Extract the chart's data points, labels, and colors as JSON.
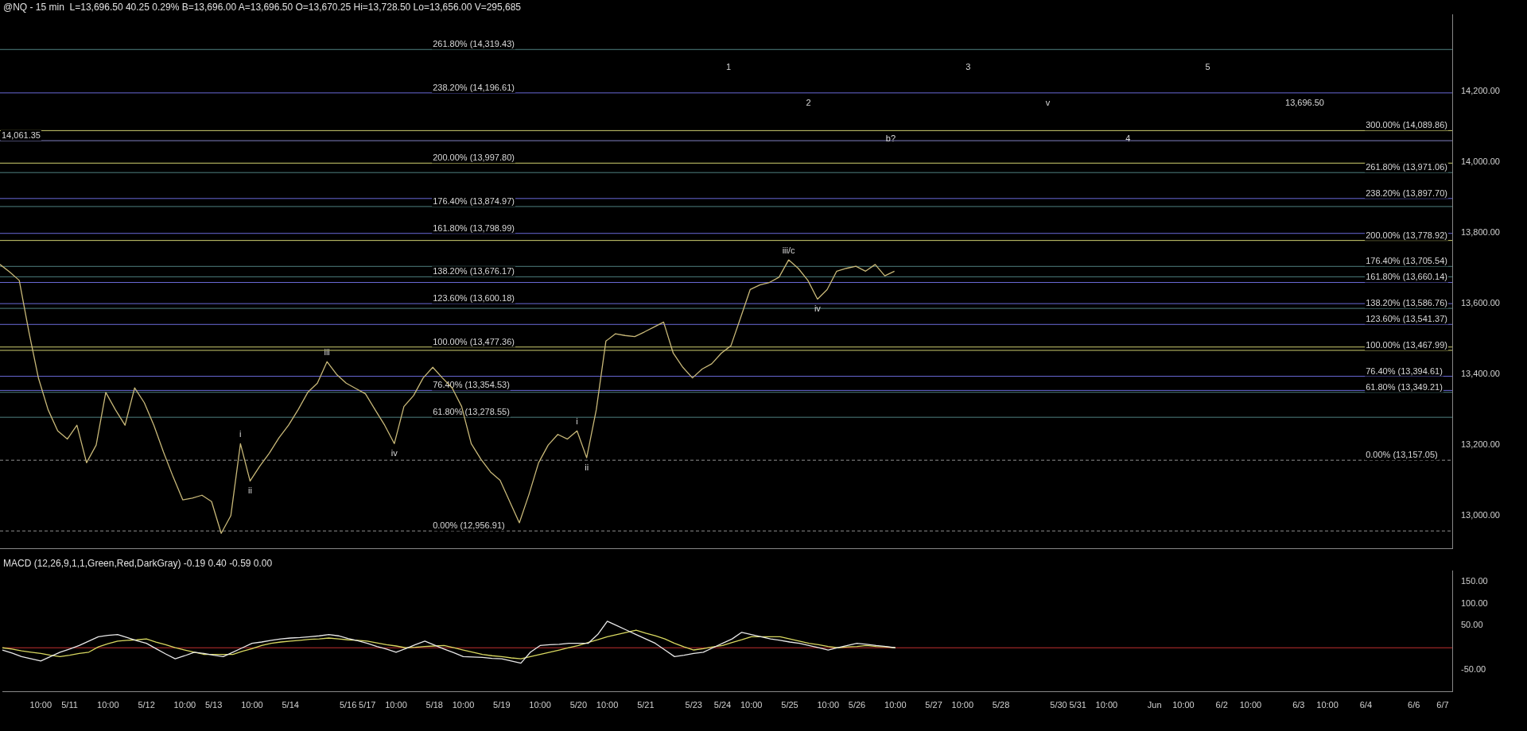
{
  "chart_data": [
    {
      "type": "line",
      "title": "@NQ - 15 min  L=13,696.50 40.25 0.29% B=13,696.00 A=13,696.50 O=13,670.25 Hi=13,728.50 Lo=13,656.00 V=295,685",
      "categories": [
        null,
        null,
        null,
        null,
        "10:00",
        null,
        null,
        "5/11",
        null,
        null,
        null,
        "10:00",
        null,
        null,
        null,
        "5/12",
        null,
        null,
        null,
        "10:00",
        null,
        null,
        "5/13",
        null,
        null,
        null,
        "10:00",
        null,
        null,
        null,
        "5/14",
        null,
        null,
        null,
        null,
        null,
        "5/16",
        null,
        "5/17",
        null,
        null,
        "10:00",
        null,
        null,
        null,
        "5/18",
        null,
        null,
        "10:00",
        null,
        null,
        null,
        "5/19",
        null,
        null,
        null,
        "10:00",
        null,
        null,
        null,
        "5/20",
        null,
        null,
        "10:00",
        null,
        null,
        null,
        "5/21",
        null,
        null,
        null,
        null,
        "5/23",
        null,
        null,
        "5/24",
        null,
        null,
        "10:00",
        null,
        null,
        null,
        "5/25",
        null,
        null,
        null,
        "10:00",
        null,
        null,
        "5/26",
        null,
        null,
        null,
        "10:00",
        null,
        null,
        null,
        "5/27",
        null,
        null,
        "10:00",
        null,
        null,
        null,
        "5/28",
        null,
        null,
        null,
        null,
        null,
        "5/30",
        null,
        "5/31",
        null,
        null,
        "10:00",
        null,
        null,
        null,
        null,
        "Jun",
        null,
        null,
        "10:00",
        null,
        null,
        null,
        "6/2",
        null,
        null,
        "10:00",
        null,
        null,
        null,
        null,
        "6/3",
        null,
        null,
        "10:00",
        null,
        null,
        null,
        "6/4",
        null,
        null,
        null,
        null,
        "6/6",
        null,
        null,
        "6/7",
        null
      ],
      "series": [
        {
          "color": "#c8b878",
          "values": [
            13711,
            13690,
            13666,
            13521,
            13389,
            13300,
            13240,
            13217,
            13256,
            13150,
            13200,
            13349,
            13300,
            13256,
            13362,
            13320,
            13256,
            13180,
            13110,
            13045,
            13050,
            13058,
            13040,
            12950,
            13000,
            13204,
            13098,
            13140,
            13177,
            13220,
            13256,
            13300,
            13349,
            13375,
            13436,
            13400,
            13375,
            13360,
            13345,
            13300,
            13256,
            13204,
            13309,
            13340,
            13390,
            13420,
            13390,
            13362,
            13309,
            13204,
            13160,
            13124,
            13100,
            13040,
            12980,
            13060,
            13150,
            13200,
            13230,
            13217,
            13240,
            13164,
            13300,
            13494,
            13515,
            13510,
            13507,
            13520,
            13534,
            13548,
            13460,
            13420,
            13390,
            13415,
            13430,
            13460,
            13481,
            13560,
            13640,
            13653,
            13660,
            13675,
            13724,
            13700,
            13666,
            13613,
            13640,
            13692,
            13700,
            13706,
            13692,
            13711,
            13679,
            13692,
            null,
            null,
            null,
            null,
            null,
            null,
            null,
            null,
            null,
            null,
            null,
            null,
            null,
            null,
            null,
            null,
            null,
            null,
            null,
            null,
            null,
            null,
            null,
            null,
            null,
            null,
            null,
            null,
            null,
            null,
            null,
            null,
            null,
            null,
            null,
            null,
            null,
            null,
            null,
            null,
            null,
            null,
            null,
            null,
            null,
            null,
            null,
            null,
            null,
            null,
            null,
            null,
            null,
            null,
            null,
            null,
            null,
            null
          ],
          "value_labels": [
            null,
            null,
            null,
            null,
            null,
            null,
            null,
            null,
            null,
            null,
            null,
            null,
            null,
            null,
            null,
            null,
            null,
            null,
            null,
            null,
            null,
            null,
            null,
            null,
            null,
            "i",
            "ii",
            null,
            null,
            null,
            null,
            null,
            null,
            null,
            "iii",
            null,
            null,
            null,
            null,
            null,
            null,
            "iv",
            null,
            null,
            null,
            null,
            null,
            null,
            null,
            null,
            null,
            null,
            null,
            null,
            null,
            null,
            null,
            null,
            null,
            null,
            "i",
            "ii",
            null,
            null,
            null,
            null,
            null,
            null,
            null,
            null,
            null,
            null,
            null,
            null,
            null,
            null,
            null,
            null,
            null,
            null,
            null,
            null,
            "iii/c",
            null,
            null,
            "iv",
            null,
            null,
            null,
            null,
            null,
            null,
            null,
            null,
            null,
            null,
            null,
            null,
            null,
            null,
            null,
            null,
            null,
            null,
            null,
            null,
            null,
            null,
            null,
            null,
            null,
            null,
            null,
            null,
            null,
            null,
            null,
            null,
            null,
            null,
            null,
            null,
            null,
            null,
            null,
            null,
            null,
            null,
            null,
            null,
            null,
            null,
            null,
            null,
            null,
            null,
            null,
            null,
            null,
            null,
            null,
            null,
            null,
            null,
            null,
            null,
            null,
            null,
            null,
            null,
            null,
            null
          ]
        }
      ],
      "ylim": [
        12907,
        14419
      ],
      "yticks": [
        {
          "value": 13000,
          "label": "13,000.00"
        },
        {
          "value": 13200,
          "label": "13,200.00"
        },
        {
          "value": 13400,
          "label": "13,400.00"
        },
        {
          "value": 13600,
          "label": "13,600.00"
        },
        {
          "value": 13800,
          "label": "13,800.00"
        },
        {
          "value": 14000,
          "label": "14,000.00"
        },
        {
          "value": 14200,
          "label": "14,200.00"
        }
      ],
      "tick_labels": "y",
      "grid": false,
      "legend": false,
      "ref_lines": [
        {
          "axis": "y",
          "value": 14319.43,
          "color": "#4f8080"
        },
        {
          "axis": "y",
          "value": 14196.61,
          "color": "#6a6ad8"
        },
        {
          "axis": "y",
          "value": 14061.35,
          "color": "#8080c0"
        },
        {
          "axis": "y",
          "value": 13997.8,
          "color": "#d0d070"
        },
        {
          "axis": "y",
          "value": 13874.97,
          "color": "#4f8080"
        },
        {
          "axis": "y",
          "value": 13798.99,
          "color": "#6a6ad8"
        },
        {
          "axis": "y",
          "value": 13676.17,
          "color": "#4f8080"
        },
        {
          "axis": "y",
          "value": 13600.18,
          "color": "#6a6ad8"
        },
        {
          "axis": "y",
          "value": 13477.36,
          "color": "#d0d070"
        },
        {
          "axis": "y",
          "value": 13354.53,
          "color": "#6a6ad8"
        },
        {
          "axis": "y",
          "value": 13278.55,
          "color": "#4f8080"
        },
        {
          "axis": "y",
          "value": 12956.91,
          "color": "#909090",
          "line_style": "dashed"
        },
        {
          "axis": "y",
          "value": 14089.86,
          "color": "#d0d070"
        },
        {
          "axis": "y",
          "value": 13971.06,
          "color": "#4f8080"
        },
        {
          "axis": "y",
          "value": 13897.7,
          "color": "#6a6ad8"
        },
        {
          "axis": "y",
          "value": 13778.92,
          "color": "#d0d070"
        },
        {
          "axis": "y",
          "value": 13705.54,
          "color": "#4f8080"
        },
        {
          "axis": "y",
          "value": 13660.14,
          "color": "#6a6ad8"
        },
        {
          "axis": "y",
          "value": 13586.76,
          "color": "#4f8080"
        },
        {
          "axis": "y",
          "value": 13541.37,
          "color": "#6a6ad8"
        },
        {
          "axis": "y",
          "value": 13467.99,
          "color": "#d0d070"
        },
        {
          "axis": "y",
          "value": 13394.61,
          "color": "#6a6ad8"
        },
        {
          "axis": "y",
          "value": 13349.21,
          "color": "#4f8080"
        },
        {
          "axis": "y",
          "value": 13157.05,
          "color": "#909090",
          "line_style": "dashed"
        }
      ],
      "annotations": [
        {
          "text": "261.80% (14,319.43)",
          "x": "5/18",
          "y": 14319.43
        },
        {
          "text": "238.20% (14,196.61)",
          "x": "5/18",
          "y": 14196.61
        },
        {
          "text": "14,061.35",
          "y": 14061.35
        },
        {
          "text": "200.00% (13,997.80)",
          "x": "5/18",
          "y": 13997.8
        },
        {
          "text": "176.40% (13,874.97)",
          "x": "5/18",
          "y": 13874.97
        },
        {
          "text": "161.80% (13,798.99)",
          "x": "5/18",
          "y": 13798.99
        },
        {
          "text": "138.20% (13,676.17)",
          "x": "5/18",
          "y": 13676.17
        },
        {
          "text": "123.60% (13,600.18)",
          "x": "5/18",
          "y": 13600.18
        },
        {
          "text": "100.00% (13,477.36)",
          "x": "5/18",
          "y": 13477.36
        },
        {
          "text": "76.40% (13,354.53)",
          "x": "5/18",
          "y": 13354.53
        },
        {
          "text": "61.80% (13,278.55)",
          "x": "5/18",
          "y": 13278.55
        },
        {
          "text": "0.00% (12,956.91)",
          "x": "5/18",
          "y": 12956.91
        },
        {
          "text": "300.00% (14,089.86)",
          "x": "6/4",
          "y": 14089.86
        },
        {
          "text": "261.80% (13,971.06)",
          "x": "6/4",
          "y": 13971.06
        },
        {
          "text": "238.20% (13,897.70)",
          "x": "6/4",
          "y": 13897.7
        },
        {
          "text": "200.00% (13,778.92)",
          "x": "6/4",
          "y": 13778.92
        },
        {
          "text": "176.40% (13,705.54)",
          "x": "6/4",
          "y": 13705.54
        },
        {
          "text": "161.80% (13,660.14)",
          "x": "6/4",
          "y": 13660.14
        },
        {
          "text": "138.20% (13,586.76)",
          "x": "6/4",
          "y": 13586.76
        },
        {
          "text": "123.60% (13,541.37)",
          "x": "6/4",
          "y": 13541.37
        },
        {
          "text": "100.00% (13,467.99)",
          "x": "6/4",
          "y": 13467.99
        },
        {
          "text": "76.40% (13,394.61)",
          "x": "6/4",
          "y": 13394.61
        },
        {
          "text": "61.80% (13,349.21)",
          "x": "6/4",
          "y": 13349.21
        },
        {
          "text": "0.00% (13,157.05)",
          "x": "6/4",
          "y": 13157.05
        },
        "1",
        "2",
        "b?",
        "3",
        "v",
        "4",
        "5",
        "13,696.50"
      ]
    },
    {
      "type": "line",
      "title": "MACD (12,26,9,1,1,Green,Red,DarkGray) -0.19 0.40 -0.59 0.00",
      "categories": [
        null,
        null,
        null,
        null,
        "10:00",
        null,
        null,
        "5/11",
        null,
        null,
        null,
        "10:00",
        null,
        null,
        null,
        "5/12",
        null,
        null,
        null,
        "10:00",
        null,
        null,
        "5/13",
        null,
        null,
        null,
        "10:00",
        null,
        null,
        null,
        "5/14",
        null,
        null,
        null,
        null,
        null,
        "5/16",
        null,
        "5/17",
        null,
        null,
        "10:00",
        null,
        null,
        null,
        "5/18",
        null,
        null,
        "10:00",
        null,
        null,
        null,
        "5/19",
        null,
        null,
        null,
        "10:00",
        null,
        null,
        null,
        "5/20",
        null,
        null,
        "10:00",
        null,
        null,
        null,
        "5/21",
        null,
        null,
        null,
        null,
        "5/23",
        null,
        null,
        "5/24",
        null,
        null,
        "10:00",
        null,
        null,
        null,
        "5/25",
        null,
        null,
        null,
        "10:00",
        null,
        null,
        "5/26",
        null,
        null,
        null,
        "10:00",
        null,
        null,
        null,
        "5/27",
        null,
        null,
        "10:00",
        null,
        null,
        null,
        "5/28",
        null,
        null,
        null,
        null,
        null,
        "5/30",
        null,
        "5/31",
        null,
        null,
        "10:00",
        null,
        null,
        null,
        null,
        "Jun",
        null,
        null,
        "10:00",
        null,
        null,
        null,
        "6/2",
        null,
        null,
        "10:00",
        null,
        null,
        null,
        null,
        "6/3",
        null,
        null,
        "10:00",
        null,
        null,
        null,
        "6/4",
        null,
        null,
        null,
        null,
        "6/6",
        null,
        null,
        "6/7",
        null
      ],
      "series": [
        {
          "color": "#e8e8e8",
          "values": [
            -5,
            -12,
            -20,
            -25,
            -30,
            -20,
            -10,
            -3,
            5,
            15,
            25,
            28,
            30,
            23,
            16,
            10,
            -2,
            -14,
            -25,
            -18,
            -10,
            -13,
            -17,
            -20,
            -10,
            0,
            10,
            13,
            17,
            20,
            22,
            23,
            25,
            27,
            30,
            27,
            21,
            16,
            10,
            3,
            -3,
            -10,
            -2,
            7,
            15,
            6,
            -3,
            -11,
            -20,
            -21,
            -22,
            -24,
            -25,
            -30,
            -35,
            -10,
            5,
            7,
            8,
            10,
            10,
            10,
            30,
            60,
            50,
            40,
            30,
            20,
            10,
            -5,
            -20,
            -17,
            -13,
            -10,
            0,
            10,
            20,
            35,
            30,
            25,
            20,
            17,
            13,
            10,
            5,
            0,
            -5,
            0,
            5,
            10,
            8,
            5,
            3,
            0,
            null,
            null,
            null,
            null,
            null,
            null,
            null,
            null,
            null,
            null,
            null,
            null,
            null,
            null,
            null,
            null,
            null,
            null,
            null,
            null,
            null,
            null,
            null,
            null,
            null,
            null,
            null,
            null,
            null,
            null,
            null,
            null,
            null,
            null,
            null,
            null,
            null,
            null,
            null,
            null,
            null,
            null,
            null,
            null,
            null,
            null,
            null,
            null,
            null,
            null,
            null,
            null,
            null,
            null,
            null,
            null,
            null,
            null
          ]
        },
        {
          "color": "#d8d860",
          "values": [
            0,
            -3,
            -7,
            -10,
            -13,
            -17,
            -20,
            -17,
            -13,
            -10,
            2,
            9,
            15,
            17,
            18,
            20,
            13,
            7,
            0,
            -5,
            -10,
            -15,
            -15,
            -15,
            -15,
            -8,
            -2,
            5,
            10,
            13,
            15,
            17,
            19,
            20,
            22,
            20,
            18,
            17,
            15,
            11,
            7,
            4,
            0,
            1,
            3,
            4,
            5,
            0,
            -5,
            -10,
            -15,
            -18,
            -20,
            -23,
            -25,
            -20,
            -15,
            -10,
            -5,
            0,
            5,
            12,
            18,
            25,
            30,
            35,
            40,
            33,
            27,
            20,
            10,
            2,
            -5,
            -2,
            2,
            5,
            12,
            18,
            25,
            25,
            25,
            25,
            20,
            15,
            10,
            7,
            3,
            0,
            2,
            3,
            5,
            3,
            2,
            0,
            null,
            null,
            null,
            null,
            null,
            null,
            null,
            null,
            null,
            null,
            null,
            null,
            null,
            null,
            null,
            null,
            null,
            null,
            null,
            null,
            null,
            null,
            null,
            null,
            null,
            null,
            null,
            null,
            null,
            null,
            null,
            null,
            null,
            null,
            null,
            null,
            null,
            null,
            null,
            null,
            null,
            null,
            null,
            null,
            null,
            null,
            null,
            null,
            null,
            null,
            null,
            null,
            null,
            null,
            null,
            null,
            null,
            null
          ]
        }
      ],
      "ylim": [
        -100,
        175
      ],
      "yticks": [
        {
          "value": 150,
          "label": "150.00"
        },
        {
          "value": 100,
          "label": "100.00"
        },
        {
          "value": 50,
          "label": "50.00"
        },
        {
          "value": -50,
          "label": "-50.00"
        }
      ],
      "grid": false,
      "legend": false,
      "ref_lines": [
        {
          "axis": "y",
          "value": 0,
          "color": "#c03030"
        }
      ]
    }
  ]
}
